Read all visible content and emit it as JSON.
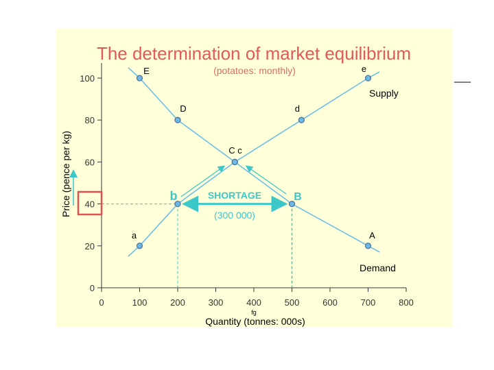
{
  "chart_data": {
    "type": "line",
    "title": "The determination of market equilibrium",
    "subtitle": "(potatoes: monthly)",
    "xlabel": "Quantity (tonnes: 000s)",
    "ylabel": "Price (pence per kg)",
    "xlim": [
      0,
      800
    ],
    "ylim": [
      0,
      100
    ],
    "xticks": [
      "0",
      "100",
      "200",
      "300",
      "400",
      "500",
      "600",
      "700",
      "800"
    ],
    "yticks": [
      "0",
      "20",
      "40",
      "60",
      "80",
      "100"
    ],
    "grid": false,
    "series": [
      {
        "name": "Demand",
        "color": "#6cc0e8",
        "points": [
          {
            "label": "E",
            "x": 100,
            "y": 100
          },
          {
            "label": "D",
            "x": 200,
            "y": 80
          },
          {
            "label": "C",
            "x": 350,
            "y": 60
          },
          {
            "label": "B",
            "x": 500,
            "y": 40
          },
          {
            "label": "A",
            "x": 700,
            "y": 20
          }
        ]
      },
      {
        "name": "Supply",
        "color": "#6cc0e8",
        "points": [
          {
            "label": "a",
            "x": 100,
            "y": 20
          },
          {
            "label": "b",
            "x": 200,
            "y": 40
          },
          {
            "label": "c",
            "x": 350,
            "y": 60
          },
          {
            "label": "d",
            "x": 525,
            "y": 80
          },
          {
            "label": "e",
            "x": 700,
            "y": 100
          }
        ]
      }
    ],
    "annotations": {
      "shortage": "SHORTAGE",
      "shortage_amount": "(300 000)",
      "price_level": 40,
      "shortage_from": 200,
      "shortage_to": 500,
      "stray": "fg",
      "equilibrium_label": "C c",
      "b_label": "b",
      "B_label": "B"
    },
    "colors": {
      "title": "#e05a5a",
      "accent": "#3cc8c8",
      "curve": "#6cc0e8",
      "panel": "#ffffd9",
      "highlight_box": "#e05050"
    }
  }
}
